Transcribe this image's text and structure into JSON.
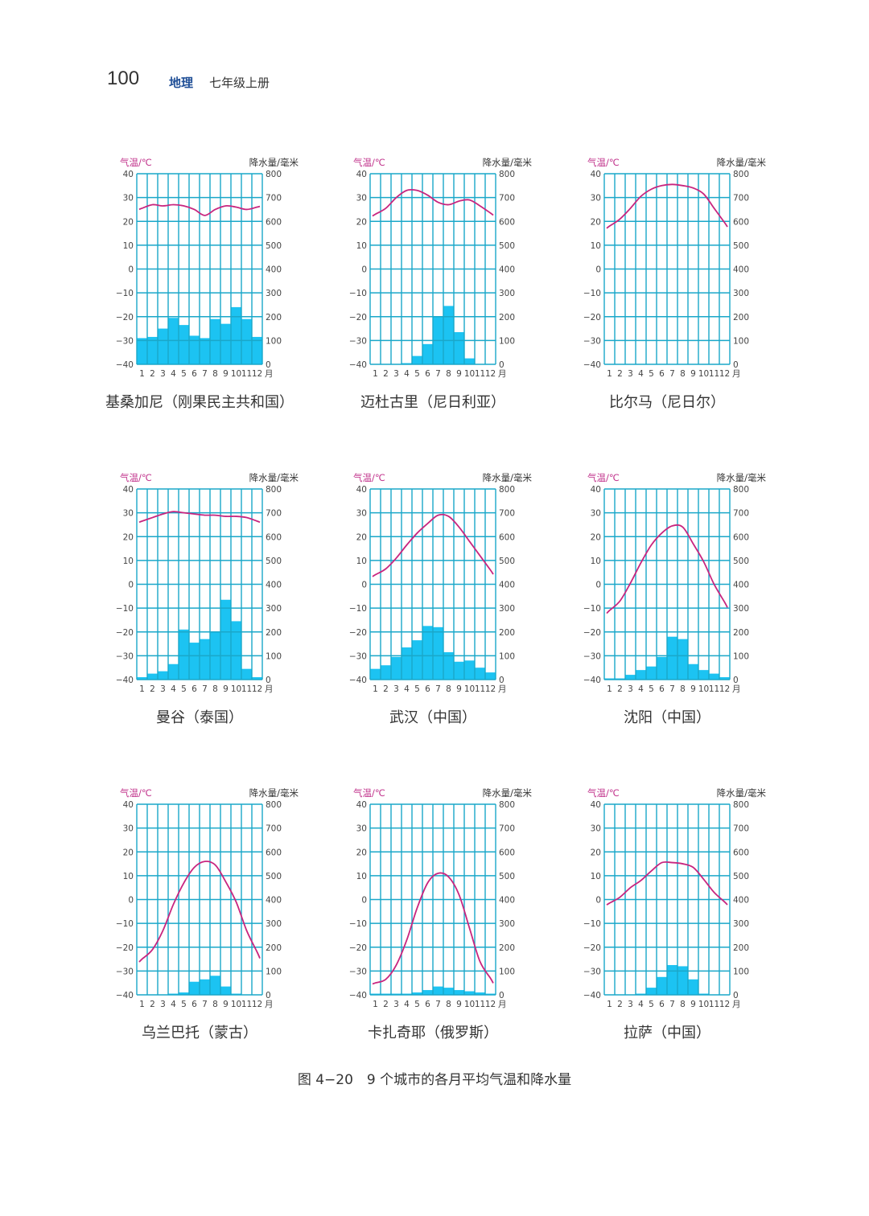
{
  "header": {
    "page_number": "100",
    "subject": "地理",
    "volume": "七年级上册"
  },
  "caption": "图 4−20　9 个城市的各月平均气温和降水量",
  "colors": {
    "grid": "#1aa7c9",
    "bar": "#1cc3f2",
    "temperature_line": "#c8257f",
    "temperature_axis_title": "#c0308a"
  },
  "chart_data": [
    {
      "type": "bar+line",
      "city": "基桑加尼（刚果民主共和国）",
      "x": [
        "1",
        "2",
        "3",
        "4",
        "5",
        "6",
        "7",
        "8",
        "9",
        "10",
        "11",
        "12"
      ],
      "x_unit": "月",
      "temperature": [
        25.5,
        27,
        26.5,
        27,
        26.5,
        25,
        22.5,
        25,
        26.5,
        26,
        25,
        26
      ],
      "precipitation": [
        110,
        115,
        150,
        195,
        165,
        120,
        110,
        190,
        170,
        240,
        190,
        115
      ],
      "ylabel_left": "气温/℃",
      "ylim_left": [
        -40,
        40
      ],
      "ylabel_right": "降水量/毫米",
      "ylim_right": [
        0,
        800
      ]
    },
    {
      "type": "bar+line",
      "city": "迈杜古里（尼日利亚）",
      "x": [
        "1",
        "2",
        "3",
        "4",
        "5",
        "6",
        "7",
        "8",
        "9",
        "10",
        "11",
        "12"
      ],
      "x_unit": "月",
      "temperature": [
        23,
        25.5,
        30,
        33,
        33,
        31,
        28,
        27,
        28.5,
        29,
        26.5,
        23.5
      ],
      "precipitation": [
        0,
        0,
        0,
        5,
        35,
        85,
        200,
        245,
        135,
        25,
        0,
        0
      ],
      "ylabel_left": "气温/℃",
      "ylim_left": [
        -40,
        40
      ],
      "ylabel_right": "降水量/毫米",
      "ylim_right": [
        0,
        800
      ]
    },
    {
      "type": "bar+line",
      "city": "比尔马（尼日尔）",
      "x": [
        "1",
        "2",
        "3",
        "4",
        "5",
        "6",
        "7",
        "8",
        "9",
        "10",
        "11",
        "12"
      ],
      "x_unit": "月",
      "temperature": [
        18,
        21,
        25.5,
        30.5,
        33.5,
        35,
        35.5,
        35,
        34,
        31.5,
        25.5,
        19.5
      ],
      "precipitation": [
        0,
        0,
        0,
        0,
        0,
        0,
        0,
        0,
        0,
        0,
        0,
        0
      ],
      "ylabel_left": "气温/℃",
      "ylim_left": [
        -40,
        40
      ],
      "ylabel_right": "降水量/毫米",
      "ylim_right": [
        0,
        800
      ]
    },
    {
      "type": "bar+line",
      "city": "曼谷（泰国）",
      "x": [
        "1",
        "2",
        "3",
        "4",
        "5",
        "6",
        "7",
        "8",
        "9",
        "10",
        "11",
        "12"
      ],
      "x_unit": "月",
      "temperature": [
        26.5,
        28,
        29.5,
        30.5,
        30,
        29.5,
        29,
        29,
        28.5,
        28.5,
        28,
        26.5
      ],
      "precipitation": [
        10,
        25,
        35,
        65,
        210,
        155,
        170,
        200,
        335,
        245,
        45,
        10
      ],
      "ylabel_left": "气温/℃",
      "ylim_left": [
        -40,
        40
      ],
      "ylabel_right": "降水量/毫米",
      "ylim_right": [
        0,
        800
      ]
    },
    {
      "type": "bar+line",
      "city": "武汉（中国）",
      "x": [
        "1",
        "2",
        "3",
        "4",
        "5",
        "6",
        "7",
        "8",
        "9",
        "10",
        "11",
        "12"
      ],
      "x_unit": "月",
      "temperature": [
        4,
        6.5,
        11,
        16.5,
        21.5,
        25.5,
        29,
        28.5,
        24,
        18,
        12,
        6
      ],
      "precipitation": [
        45,
        60,
        95,
        135,
        165,
        225,
        220,
        115,
        75,
        80,
        50,
        30
      ],
      "ylabel_left": "气温/℃",
      "ylim_left": [
        -40,
        40
      ],
      "ylabel_right": "降水量/毫米",
      "ylim_right": [
        0,
        800
      ]
    },
    {
      "type": "bar+line",
      "city": "沈阳（中国）",
      "x": [
        "1",
        "2",
        "3",
        "4",
        "5",
        "6",
        "7",
        "8",
        "9",
        "10",
        "11",
        "12"
      ],
      "x_unit": "月",
      "temperature": [
        -11,
        -7,
        0.5,
        9,
        16.5,
        21.5,
        24.5,
        24,
        17,
        9.5,
        0,
        -7.5
      ],
      "precipitation": [
        5,
        5,
        20,
        40,
        55,
        95,
        180,
        170,
        65,
        40,
        25,
        10
      ],
      "ylabel_left": "气温/℃",
      "ylim_left": [
        -40,
        40
      ],
      "ylabel_right": "降水量/毫米",
      "ylim_right": [
        0,
        800
      ]
    },
    {
      "type": "bar+line",
      "city": "乌兰巴托（蒙古）",
      "x": [
        "1",
        "2",
        "3",
        "4",
        "5",
        "6",
        "7",
        "8",
        "9",
        "10",
        "11",
        "12"
      ],
      "x_unit": "月",
      "temperature": [
        -25,
        -21,
        -13,
        -2,
        7,
        13.5,
        16,
        14.5,
        7.5,
        -1,
        -13,
        -22
      ],
      "precipitation": [
        0,
        0,
        0,
        5,
        10,
        55,
        65,
        80,
        35,
        5,
        0,
        0
      ],
      "ylabel_left": "气温/℃",
      "ylim_left": [
        -40,
        40
      ],
      "ylabel_right": "降水量/毫米",
      "ylim_right": [
        0,
        800
      ]
    },
    {
      "type": "bar+line",
      "city": "卡扎奇耶（俄罗斯）",
      "x": [
        "1",
        "2",
        "3",
        "4",
        "5",
        "6",
        "7",
        "8",
        "9",
        "10",
        "11",
        "12"
      ],
      "x_unit": "月",
      "temperature": [
        -35,
        -33.5,
        -27.5,
        -17,
        -3.5,
        7,
        11,
        9.5,
        2,
        -12,
        -26,
        -33
      ],
      "precipitation": [
        5,
        5,
        5,
        5,
        10,
        20,
        35,
        30,
        20,
        15,
        10,
        5
      ],
      "ylabel_left": "气温/℃",
      "ylim_left": [
        -40,
        40
      ],
      "ylabel_right": "降水量/毫米",
      "ylim_right": [
        0,
        800
      ]
    },
    {
      "type": "bar+line",
      "city": "拉萨（中国）",
      "x": [
        "1",
        "2",
        "3",
        "4",
        "5",
        "6",
        "7",
        "8",
        "9",
        "10",
        "11",
        "12"
      ],
      "x_unit": "月",
      "temperature": [
        -1.5,
        1,
        5,
        8,
        12,
        15.5,
        15.5,
        15,
        13.5,
        8.5,
        3,
        -1
      ],
      "precipitation": [
        0,
        0,
        0,
        5,
        30,
        75,
        125,
        120,
        65,
        5,
        0,
        0
      ],
      "ylabel_left": "气温/℃",
      "ylim_left": [
        -40,
        40
      ],
      "ylabel_right": "降水量/毫米",
      "ylim_right": [
        0,
        800
      ]
    }
  ]
}
